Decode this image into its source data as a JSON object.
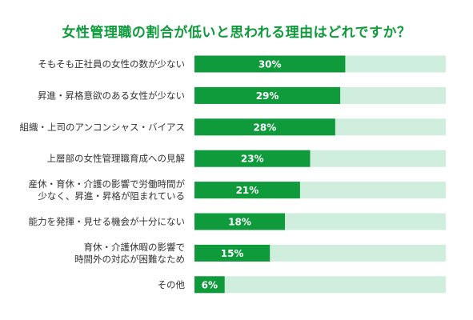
{
  "chart_data": {
    "type": "bar",
    "orientation": "horizontal",
    "title": "女性管理職の割合が低いと思われる理由はどれですか？",
    "categories": [
      [
        "そもそも正社員の女性の数が少ない"
      ],
      [
        "昇進・昇格意欲のある女性が少ない"
      ],
      [
        "組織・上司のアンコンシャス・バイアス"
      ],
      [
        "上層部の女性管理職育成への見解"
      ],
      [
        "産休・育休・介護の影響で労働時間が",
        "少なく、昇進・昇格が阻まれている"
      ],
      [
        "能力を発揮・見せる機会が十分にない"
      ],
      [
        "育休・介護休暇の影響で",
        "時間外の対応が困難なため"
      ],
      [
        "その他"
      ]
    ],
    "values": [
      30,
      29,
      28,
      23,
      21,
      18,
      15,
      6
    ],
    "value_labels": [
      "30%",
      "29%",
      "28%",
      "23%",
      "21%",
      "18%",
      "15%",
      "6%"
    ],
    "xlim": [
      0,
      50
    ],
    "grid": false,
    "legend": "none",
    "colors": {
      "bar": "#0f9a3c",
      "track": "#cfeedd",
      "title": "#0f9a3c",
      "label": "#333333"
    }
  }
}
